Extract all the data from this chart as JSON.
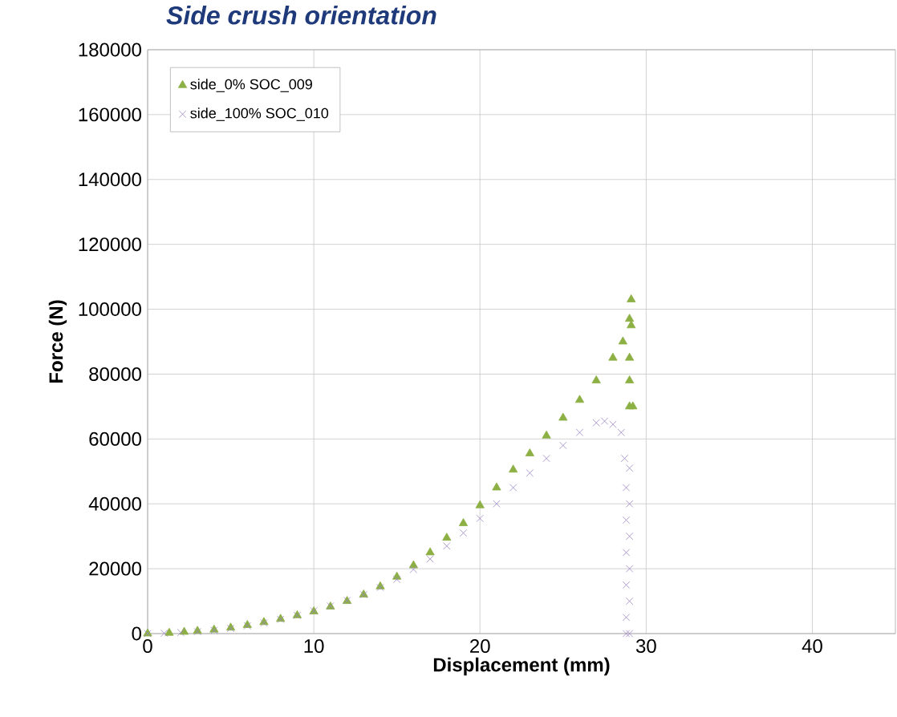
{
  "chart_data": {
    "type": "scatter",
    "title": "Side crush orientation",
    "xlabel": "Displacement (mm)",
    "ylabel": "Force (N)",
    "xlim": [
      0,
      45
    ],
    "xticks": [
      0,
      10,
      20,
      30,
      40
    ],
    "ylim": [
      0,
      180000
    ],
    "yticks": [
      0,
      20000,
      40000,
      60000,
      80000,
      100000,
      120000,
      140000,
      160000,
      180000
    ],
    "grid": true,
    "legend": "top left",
    "series": [
      {
        "name": "side_0% SOC_009",
        "color": "#8db045",
        "marker": "triangle",
        "x": [
          0,
          1.3,
          2.2,
          3,
          4,
          5,
          6,
          7,
          8,
          9,
          10,
          11,
          12,
          13,
          14,
          15,
          16,
          17,
          18,
          19,
          20,
          21,
          22,
          23,
          24,
          25,
          26,
          27,
          28,
          28.6,
          29,
          29.1,
          29.1,
          29,
          29,
          29,
          29.2
        ],
        "values": [
          0,
          200,
          500,
          800,
          1200,
          1800,
          2600,
          3500,
          4500,
          5600,
          6800,
          8300,
          10000,
          12000,
          14500,
          17500,
          21000,
          25000,
          29500,
          34000,
          39500,
          45000,
          50500,
          55500,
          61000,
          66500,
          72000,
          78000,
          85000,
          90000,
          97000,
          103000,
          95000,
          85000,
          78000,
          70000,
          70000
        ]
      },
      {
        "name": "side_100% SOC_010",
        "color": "#9b84c4",
        "marker": "cross",
        "x": [
          0,
          1,
          2,
          3,
          4,
          5,
          6,
          7,
          8,
          9,
          10,
          11,
          12,
          13,
          14,
          15,
          16,
          17,
          18,
          19,
          20,
          21,
          22,
          23,
          24,
          25,
          26,
          27,
          27.5,
          28,
          28.5,
          28.7,
          28.8,
          28.8,
          28.8,
          28.8,
          28.8,
          28.8,
          29,
          29,
          29,
          29,
          29,
          29
        ],
        "values": [
          0,
          100,
          300,
          600,
          1000,
          1600,
          2400,
          3300,
          4400,
          5600,
          7000,
          8500,
          10200,
          12000,
          14200,
          16700,
          19800,
          23000,
          27000,
          31000,
          35500,
          40000,
          45000,
          49500,
          54000,
          58000,
          62000,
          65000,
          65500,
          64500,
          62000,
          54000,
          45000,
          35000,
          25000,
          15000,
          5000,
          0,
          51000,
          40000,
          30000,
          20000,
          10000,
          0
        ]
      }
    ]
  }
}
